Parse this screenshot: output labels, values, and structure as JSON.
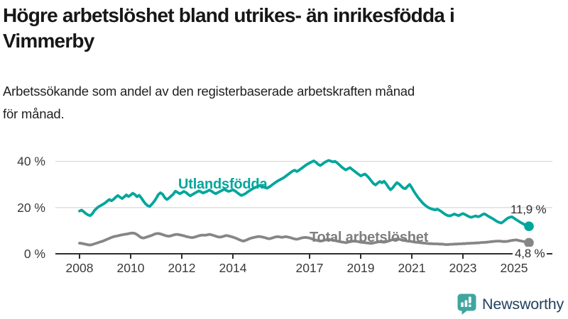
{
  "header": {
    "title_line1": "Högre arbetslöshet bland utrikes- än inrikesfödda i",
    "title_line2": "Vimmerby",
    "subtitle_line1": "Arbetssökande som andel av den registerbaserade arbetskraften månad",
    "subtitle_line2": "för månad."
  },
  "chart_data": {
    "type": "line",
    "title": "Högre arbetslöshet bland utrikes- än inrikesfödda i Vimmerby",
    "subtitle": "Arbetssökande som andel av den registerbaserade arbetskraften månad för månad.",
    "x_unit": "month",
    "x_start": "2008-01",
    "x_end": "2025-08",
    "x_tick_years": [
      2008,
      2010,
      2012,
      2014,
      2017,
      2019,
      2021,
      2023,
      2025
    ],
    "x_tick_labels": [
      "2008",
      "2010",
      "2012",
      "2014",
      "2017",
      "2019",
      "2021",
      "2023",
      "2025"
    ],
    "y_ticks": [
      {
        "value": 0,
        "label": "0 %"
      },
      {
        "value": 20,
        "label": "20 %"
      },
      {
        "value": 40,
        "label": "40 %"
      }
    ],
    "ylim": [
      0,
      43
    ],
    "grid": "horizontal",
    "legend_position": "inline-labels",
    "series": [
      {
        "name": "Utlandsfödda",
        "color": "#00a69c",
        "end_label": "11,9 %",
        "end_value": 11.9,
        "values": [
          18.5,
          18.9,
          18.2,
          17.4,
          16.8,
          16.5,
          17.3,
          18.7,
          19.6,
          20.4,
          20.9,
          21.4,
          22.0,
          22.8,
          23.5,
          22.9,
          23.6,
          24.5,
          25.2,
          24.5,
          23.9,
          24.6,
          25.5,
          24.8,
          25.4,
          26.2,
          25.6,
          24.7,
          25.3,
          24.2,
          22.8,
          21.6,
          20.8,
          20.5,
          21.5,
          22.6,
          24.0,
          25.6,
          26.4,
          25.8,
          24.3,
          23.5,
          24.1,
          25.0,
          25.8,
          27.1,
          26.6,
          26.0,
          26.4,
          27.0,
          26.5,
          25.7,
          25.1,
          25.6,
          26.2,
          26.7,
          27.2,
          26.8,
          26.3,
          26.7,
          27.1,
          27.6,
          27.1,
          26.4,
          26.0,
          26.5,
          27.0,
          27.5,
          27.9,
          27.4,
          27.0,
          27.3,
          27.7,
          27.2,
          26.5,
          25.8,
          25.2,
          25.6,
          26.1,
          26.8,
          27.4,
          28.0,
          28.5,
          28.9,
          29.3,
          29.7,
          29.2,
          28.7,
          28.4,
          28.9,
          29.5,
          30.2,
          30.9,
          31.5,
          32.0,
          32.5,
          33.0,
          33.7,
          34.4,
          35.1,
          35.7,
          36.2,
          35.6,
          36.1,
          36.8,
          37.5,
          38.2,
          38.8,
          39.3,
          39.8,
          40.2,
          39.6,
          38.7,
          38.2,
          38.8,
          39.5,
          40.0,
          40.4,
          40.1,
          39.8,
          40.0,
          39.3,
          38.5,
          37.6,
          36.9,
          36.3,
          36.8,
          37.3,
          36.5,
          35.8,
          35.1,
          34.4,
          33.7,
          34.1,
          34.5,
          33.7,
          32.7,
          31.5,
          30.4,
          29.8,
          30.6,
          31.3,
          30.7,
          31.4,
          30.2,
          28.8,
          27.7,
          28.5,
          29.7,
          30.8,
          30.2,
          29.3,
          28.4,
          28.2,
          29.2,
          30.0,
          28.6,
          27.0,
          25.6,
          24.3,
          23.2,
          22.1,
          21.2,
          20.5,
          19.9,
          19.5,
          19.2,
          19.0,
          19.3,
          18.8,
          18.2,
          17.5,
          16.9,
          16.5,
          16.4,
          16.8,
          17.2,
          16.8,
          16.5,
          17.0,
          17.4,
          17.0,
          16.5,
          16.0,
          15.8,
          16.1,
          16.4,
          16.0,
          16.3,
          16.9,
          17.3,
          16.8,
          16.2,
          15.7,
          15.2,
          14.6,
          14.0,
          13.6,
          13.3,
          13.9,
          14.7,
          15.4,
          15.8,
          16.0,
          15.4,
          14.8,
          14.2,
          13.6,
          13.1,
          12.6,
          12.2,
          11.9
        ]
      },
      {
        "name": "Total arbetslöshet",
        "color": "#868686",
        "end_label": "4,8 %",
        "end_value": 4.8,
        "values": [
          4.6,
          4.5,
          4.3,
          4.1,
          3.9,
          3.8,
          4.0,
          4.3,
          4.6,
          4.9,
          5.2,
          5.5,
          5.9,
          6.3,
          6.7,
          7.1,
          7.4,
          7.6,
          7.8,
          8.0,
          8.2,
          8.4,
          8.5,
          8.7,
          8.9,
          9.0,
          8.8,
          8.3,
          7.6,
          7.0,
          6.8,
          7.1,
          7.4,
          7.7,
          8.0,
          8.4,
          8.7,
          8.8,
          8.6,
          8.3,
          8.0,
          7.7,
          7.6,
          7.8,
          8.1,
          8.3,
          8.4,
          8.2,
          8.0,
          7.8,
          7.5,
          7.3,
          7.1,
          7.0,
          7.2,
          7.5,
          7.8,
          8.0,
          8.1,
          8.0,
          8.2,
          8.4,
          8.2,
          7.9,
          7.6,
          7.3,
          7.2,
          7.4,
          7.7,
          7.9,
          7.7,
          7.5,
          7.2,
          6.9,
          6.5,
          6.1,
          5.7,
          5.5,
          5.8,
          6.2,
          6.6,
          6.9,
          7.1,
          7.3,
          7.5,
          7.4,
          7.2,
          7.0,
          6.7,
          6.5,
          6.7,
          7.0,
          7.3,
          7.4,
          7.3,
          7.1,
          7.3,
          7.4,
          7.2,
          7.0,
          6.7,
          6.4,
          6.3,
          6.5,
          6.8,
          7.0,
          7.1,
          7.0,
          6.8,
          6.5,
          6.2,
          5.9,
          5.7,
          5.5,
          5.6,
          5.9,
          6.1,
          6.2,
          6.1,
          5.9,
          5.7,
          5.5,
          5.3,
          5.1,
          5.0,
          4.8,
          5.0,
          5.2,
          5.4,
          5.5,
          5.4,
          5.2,
          5.0,
          4.9,
          4.8,
          4.7,
          4.6,
          4.5,
          4.7,
          4.9,
          5.1,
          5.2,
          5.1,
          5.0,
          5.2,
          5.5,
          5.8,
          6.1,
          6.3,
          6.4,
          6.3,
          6.1,
          5.9,
          5.7,
          5.5,
          5.4,
          5.3,
          5.1,
          5.0,
          4.9,
          4.8,
          4.7,
          4.6,
          4.5,
          4.4,
          4.4,
          4.3,
          4.3,
          4.3,
          4.2,
          4.2,
          4.1,
          4.0,
          4.0,
          4.1,
          4.1,
          4.2,
          4.2,
          4.3,
          4.3,
          4.4,
          4.4,
          4.5,
          4.5,
          4.6,
          4.6,
          4.7,
          4.7,
          4.8,
          4.9,
          4.9,
          5.0,
          5.1,
          5.2,
          5.3,
          5.4,
          5.5,
          5.5,
          5.4,
          5.3,
          5.3,
          5.4,
          5.6,
          5.8,
          5.9,
          6.0,
          5.8,
          5.6,
          5.4,
          5.2,
          5.0,
          4.8
        ]
      }
    ]
  },
  "branding": {
    "logo_text": "Newsworthy",
    "logo_icon": "bar-chart-speech-bubble-icon",
    "logo_icon_color": "#3fa69e",
    "logo_text_color": "#21415f"
  },
  "colors": {
    "series_foreign_born": "#00a69c",
    "series_total": "#868686",
    "gridline": "#dcdcdc",
    "axis": "#2e2e2e",
    "axis_text": "#3a3a3a",
    "title_text": "#171717"
  }
}
